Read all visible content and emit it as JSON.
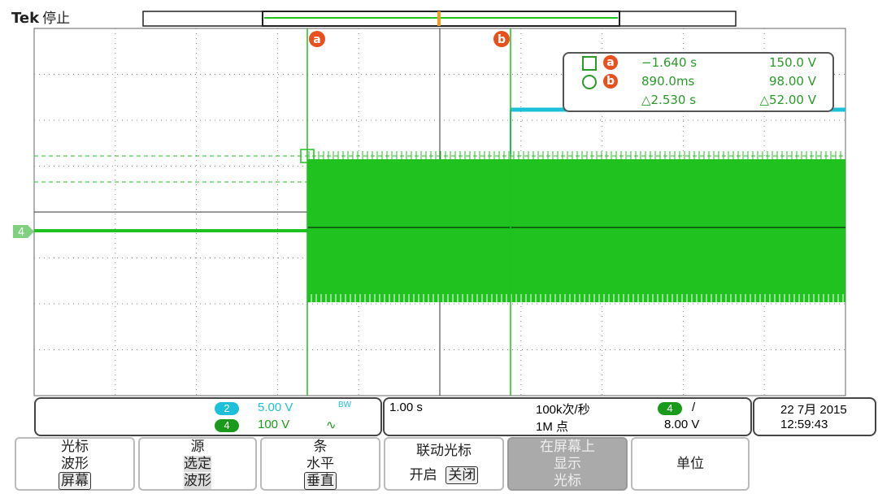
{
  "header": {
    "brand": "Tek",
    "status": "停止"
  },
  "colors": {
    "ch4": "#1fc21f",
    "ch2": "#1cc0d8",
    "cursor_badge": "#e8501e",
    "trigger": "#f0a020"
  },
  "cursors": {
    "a": {
      "label": "a",
      "time": "−1.640 s",
      "value": "150.0 V"
    },
    "b": {
      "label": "b",
      "time": "890.0ms",
      "value": "98.00 V"
    },
    "delta": {
      "time": "△2.530 s",
      "value": "△52.00 V"
    }
  },
  "channel_marker": "4",
  "trigger_marker": "T",
  "channels": [
    {
      "num": "2",
      "scale": "5.00 V",
      "coupling": "BW"
    },
    {
      "num": "4",
      "scale": "100 V",
      "coupling": "∿"
    }
  ],
  "horizontal": {
    "timebase": "1.00 s",
    "sample_rate": "100k次/秒",
    "record_length": "1M 点"
  },
  "trigger": {
    "channel": "4",
    "slope": "/",
    "level": "8.00 V"
  },
  "datetime": {
    "date": "22 7月 2015",
    "time": "12:59:43"
  },
  "menu": [
    {
      "l1": "光标",
      "l2": "波形",
      "l3": "屏幕"
    },
    {
      "l1": "源",
      "l2": "选定",
      "l3": "波形"
    },
    {
      "l1": "条",
      "l2": "水平",
      "l3": "垂直"
    },
    {
      "l1": "联动光标",
      "on": "开启",
      "off": "关闭"
    },
    {
      "l1": "在屏幕上",
      "l2": "显示",
      "l3": "光标"
    },
    {
      "l1": "单位"
    }
  ]
}
